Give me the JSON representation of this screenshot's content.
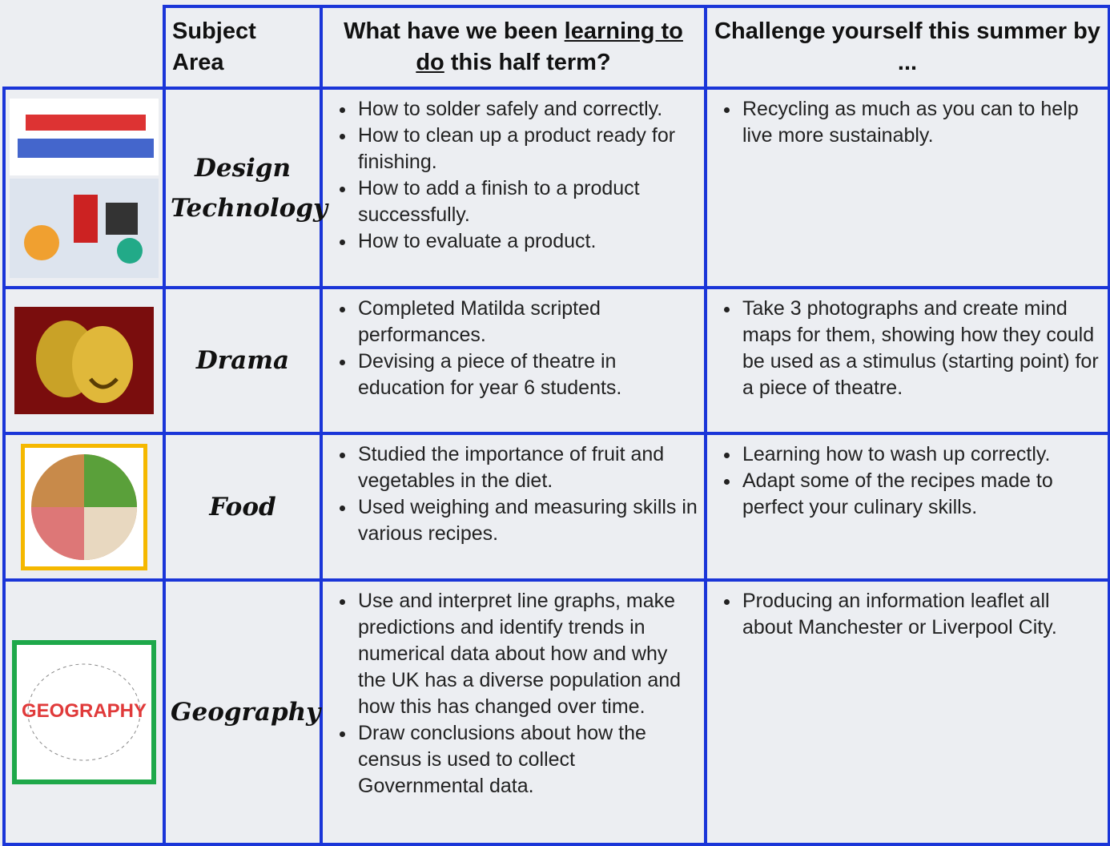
{
  "header": {
    "columns": [
      "Subject Area",
      {
        "text_before": "What have we been ",
        "underlined": "learning to do",
        "text_after": " this half term?"
      },
      "Challenge yourself this summer by ..."
    ]
  },
  "rows": [
    {
      "subject": "Design Technology",
      "learning": [
        "How to solder safely and correctly.",
        "How to clean up a product ready for finishing.",
        "How to add a finish to a product successfully.",
        "How to evaluate a product."
      ],
      "challenge": [
        "Recycling as much as you can to help live more sustainably."
      ]
    },
    {
      "subject": "Drama",
      "learning": [
        "Completed  Matilda scripted performances.",
        "Devising a piece of theatre in education for year 6 students."
      ],
      "challenge": [
        "Take 3 photographs and create mind maps for them, showing how they could be used as a stimulus (starting point) for a piece of theatre."
      ]
    },
    {
      "subject": "Food",
      "learning": [
        "Studied the importance of fruit and vegetables in the diet.",
        "Used weighing and measuring skills in various recipes."
      ],
      "challenge": [
        "Learning how to wash up correctly.",
        "Adapt some of the recipes made to perfect your culinary skills."
      ]
    },
    {
      "subject": "Geography",
      "image_text": "GEOGRAPHY",
      "learning": [
        "Use and interpret line graphs, make predictions and identify trends in numerical data about how and why the UK has a diverse population and how this has changed over time.",
        "Draw conclusions about how the census is used to collect Governmental data."
      ],
      "challenge": [
        "Producing an information leaflet all about Manchester or Liverpool City."
      ]
    }
  ]
}
